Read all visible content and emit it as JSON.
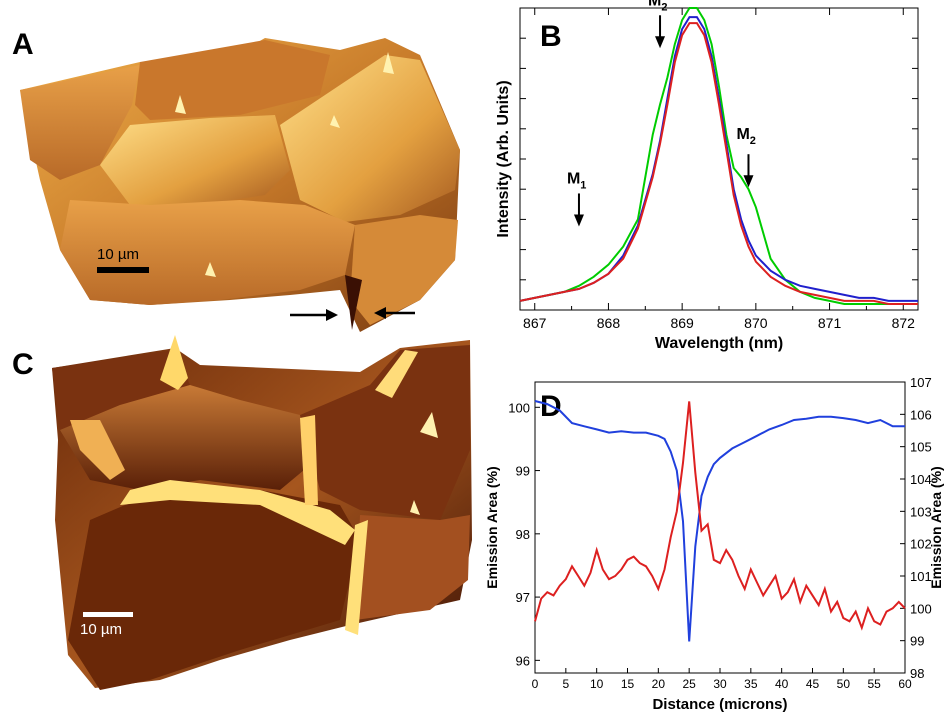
{
  "panels": {
    "a": {
      "letter": "A",
      "scale_bar": "10 µm"
    },
    "c": {
      "letter": "C",
      "scale_bar": "10 µm"
    }
  },
  "chart_data": [
    {
      "type": "line",
      "panel": "B",
      "xlabel": "Wavelength (nm)",
      "ylabel": "Intensity (Arb. Units)",
      "xlim": [
        866.8,
        872.2
      ],
      "ylim": [
        0,
        1.0
      ],
      "xticks": [
        867,
        868,
        869,
        870,
        871,
        872
      ],
      "yticks_labeled": false,
      "annotations": [
        {
          "text": "M",
          "sub": "1",
          "x": 867.6,
          "y": 0.27
        },
        {
          "text": "M",
          "sub": "2",
          "x": 868.7,
          "y": 0.86
        },
        {
          "text": "M",
          "sub": "2",
          "x": 869.9,
          "y": 0.4
        }
      ],
      "series": [
        {
          "color": "#00cc00",
          "x": [
            866.8,
            867.0,
            867.2,
            867.4,
            867.6,
            867.8,
            868.0,
            868.2,
            868.4,
            868.6,
            868.7,
            868.8,
            868.9,
            869.0,
            869.1,
            869.2,
            869.3,
            869.4,
            869.5,
            869.6,
            869.7,
            869.8,
            869.9,
            870.0,
            870.2,
            870.4,
            870.6,
            870.8,
            871.0,
            871.2,
            871.4,
            871.6,
            871.8,
            872.0,
            872.2
          ],
          "y": [
            0.03,
            0.04,
            0.05,
            0.06,
            0.08,
            0.11,
            0.15,
            0.21,
            0.3,
            0.58,
            0.68,
            0.77,
            0.88,
            0.96,
            1.0,
            1.0,
            0.96,
            0.88,
            0.74,
            0.58,
            0.47,
            0.44,
            0.4,
            0.34,
            0.17,
            0.1,
            0.06,
            0.04,
            0.03,
            0.02,
            0.02,
            0.02,
            0.02,
            0.02,
            0.02
          ]
        },
        {
          "color": "#2020cc",
          "x": [
            866.8,
            867.0,
            867.2,
            867.4,
            867.6,
            867.8,
            868.0,
            868.2,
            868.4,
            868.6,
            868.7,
            868.8,
            868.9,
            869.0,
            869.1,
            869.2,
            869.3,
            869.4,
            869.5,
            869.6,
            869.7,
            869.8,
            869.9,
            870.0,
            870.2,
            870.4,
            870.6,
            870.8,
            871.0,
            871.2,
            871.4,
            871.6,
            871.8,
            872.0,
            872.2
          ],
          "y": [
            0.03,
            0.04,
            0.05,
            0.06,
            0.07,
            0.09,
            0.12,
            0.18,
            0.28,
            0.45,
            0.56,
            0.7,
            0.84,
            0.93,
            0.97,
            0.97,
            0.93,
            0.84,
            0.7,
            0.55,
            0.4,
            0.3,
            0.23,
            0.18,
            0.13,
            0.1,
            0.08,
            0.07,
            0.06,
            0.05,
            0.04,
            0.04,
            0.03,
            0.03,
            0.03
          ]
        },
        {
          "color": "#dd2020",
          "x": [
            866.8,
            867.0,
            867.2,
            867.4,
            867.6,
            867.8,
            868.0,
            868.2,
            868.4,
            868.6,
            868.7,
            868.8,
            868.9,
            869.0,
            869.1,
            869.2,
            869.3,
            869.4,
            869.5,
            869.6,
            869.7,
            869.8,
            869.9,
            870.0,
            870.2,
            870.4,
            870.6,
            870.8,
            871.0,
            871.2,
            871.4,
            871.6,
            871.8,
            872.0,
            872.2
          ],
          "y": [
            0.03,
            0.04,
            0.05,
            0.06,
            0.07,
            0.09,
            0.12,
            0.17,
            0.27,
            0.44,
            0.55,
            0.68,
            0.82,
            0.91,
            0.95,
            0.95,
            0.91,
            0.82,
            0.68,
            0.53,
            0.38,
            0.28,
            0.21,
            0.16,
            0.11,
            0.08,
            0.06,
            0.05,
            0.04,
            0.03,
            0.03,
            0.03,
            0.02,
            0.02,
            0.02
          ]
        }
      ]
    },
    {
      "type": "line",
      "panel": "D",
      "xlabel": "Distance (microns)",
      "ylabel": "Emission Area (%)",
      "ylabel_right": "Emission Area (%)",
      "xlim": [
        0,
        60
      ],
      "ylim": [
        95.8,
        100.4
      ],
      "ylim_right": [
        98,
        107
      ],
      "xticks": [
        0,
        5,
        10,
        15,
        20,
        25,
        30,
        35,
        40,
        45,
        50,
        55,
        60
      ],
      "yticks": [
        96,
        97,
        98,
        99,
        100
      ],
      "yticks_right": [
        98,
        99,
        100,
        101,
        102,
        103,
        104,
        105,
        106,
        107
      ],
      "series": [
        {
          "color": "#2040dd",
          "axis": "left",
          "x": [
            0,
            2,
            4,
            6,
            8,
            10,
            12,
            14,
            16,
            18,
            20,
            21,
            22,
            23,
            24,
            25,
            26,
            27,
            28,
            29,
            30,
            32,
            34,
            36,
            38,
            40,
            42,
            44,
            46,
            48,
            50,
            52,
            54,
            56,
            58,
            60
          ],
          "y": [
            100.1,
            100.05,
            99.95,
            99.75,
            99.7,
            99.65,
            99.6,
            99.62,
            99.6,
            99.6,
            99.55,
            99.5,
            99.3,
            99.0,
            98.2,
            96.3,
            97.8,
            98.6,
            98.9,
            99.1,
            99.2,
            99.35,
            99.45,
            99.55,
            99.65,
            99.72,
            99.8,
            99.82,
            99.85,
            99.85,
            99.83,
            99.8,
            99.75,
            99.8,
            99.7,
            99.7
          ]
        },
        {
          "color": "#dd2020",
          "axis": "right",
          "x": [
            0,
            1,
            2,
            3,
            4,
            5,
            6,
            7,
            8,
            9,
            10,
            11,
            12,
            13,
            14,
            15,
            16,
            17,
            18,
            19,
            20,
            21,
            22,
            23,
            24,
            25,
            26,
            27,
            28,
            29,
            30,
            31,
            32,
            33,
            34,
            35,
            36,
            37,
            38,
            39,
            40,
            41,
            42,
            43,
            44,
            45,
            46,
            47,
            48,
            49,
            50,
            51,
            52,
            53,
            54,
            55,
            56,
            57,
            58,
            59,
            60
          ],
          "y": [
            99.6,
            100.3,
            100.5,
            100.4,
            100.7,
            100.9,
            101.3,
            101.0,
            100.7,
            101.1,
            101.8,
            101.2,
            100.9,
            101.0,
            101.2,
            101.5,
            101.6,
            101.4,
            101.3,
            101.0,
            100.6,
            101.2,
            102.2,
            103.0,
            104.5,
            106.4,
            104.2,
            102.4,
            102.6,
            101.5,
            101.4,
            101.8,
            101.5,
            101.0,
            100.6,
            101.2,
            100.8,
            100.4,
            100.7,
            101.0,
            100.3,
            100.5,
            100.9,
            100.2,
            100.7,
            100.4,
            100.1,
            100.6,
            99.9,
            100.2,
            99.7,
            99.6,
            99.9,
            99.4,
            100.0,
            99.6,
            99.5,
            99.9,
            100.0,
            100.2,
            100.0
          ]
        }
      ]
    }
  ]
}
